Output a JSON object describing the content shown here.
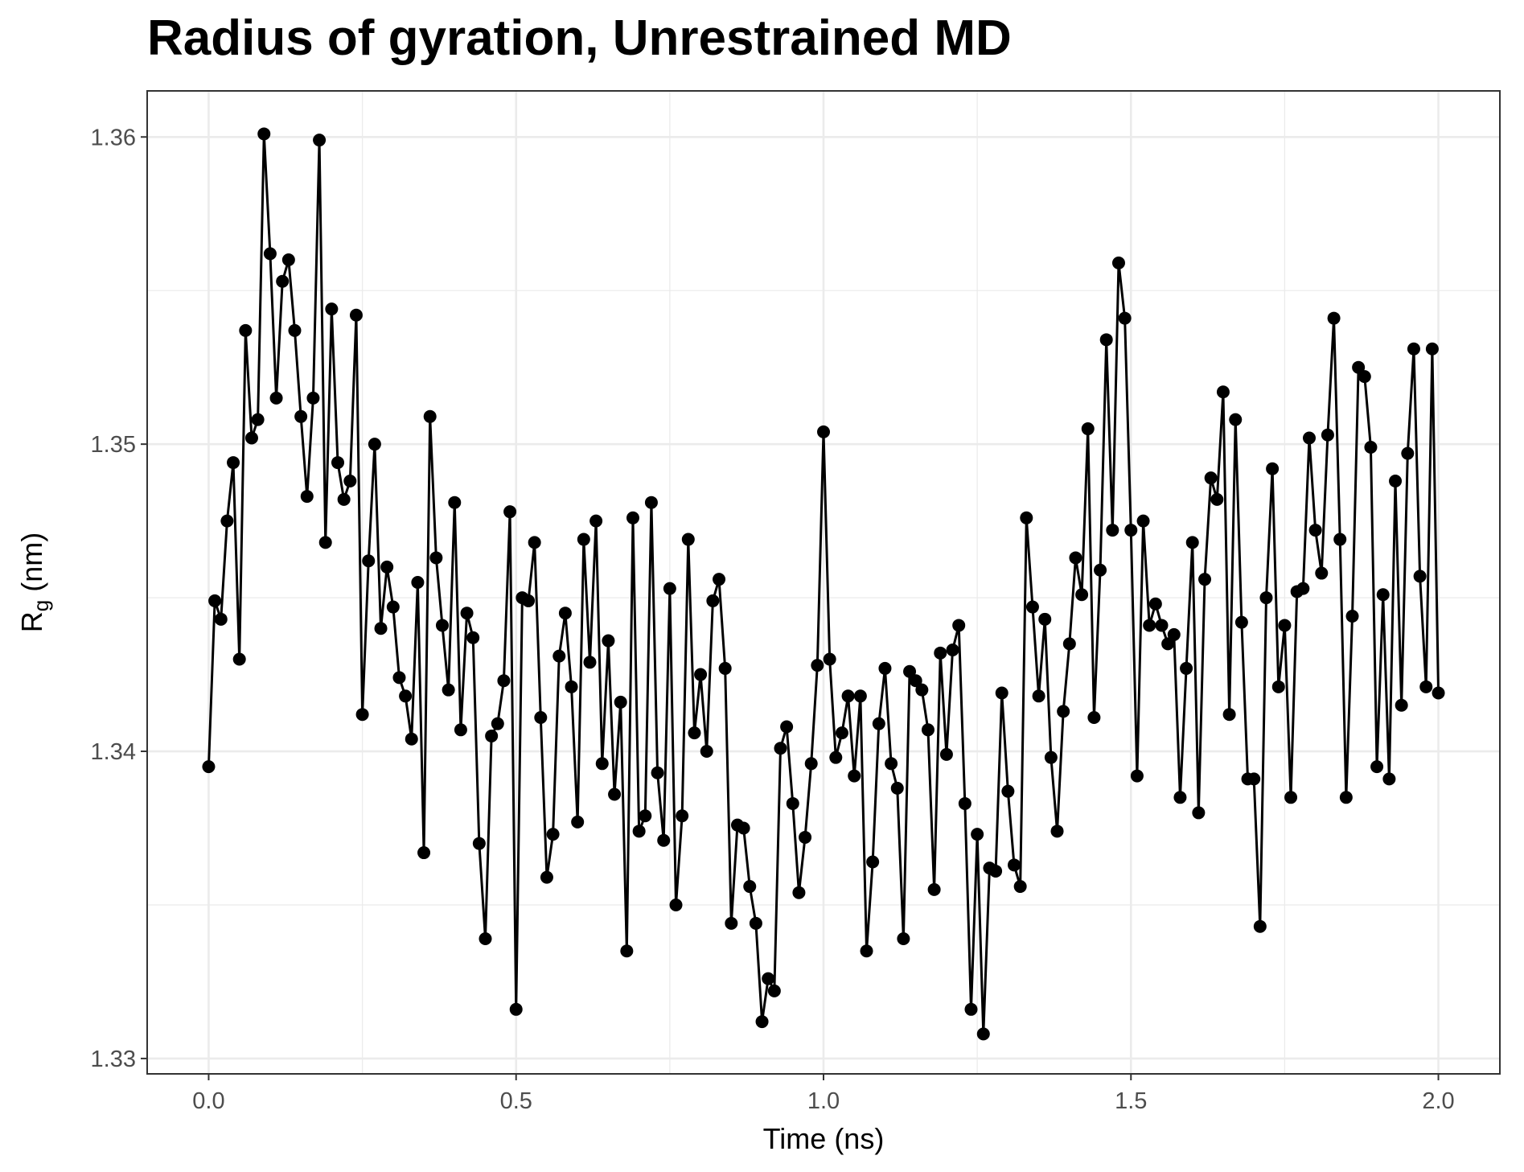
{
  "chart_data": {
    "type": "line",
    "title": "Radius of gyration, Unrestrained MD",
    "xlabel": "Time (ns)",
    "ylabel_main": "R",
    "ylabel_sub": "g",
    "ylabel_unit": " (nm)",
    "xlim": [
      -0.1,
      2.1
    ],
    "ylim": [
      1.3295,
      1.3615
    ],
    "x_major_ticks": [
      0.0,
      0.5,
      1.0,
      1.5,
      2.0
    ],
    "x_tick_labels": [
      "0.0",
      "0.5",
      "1.0",
      "1.5",
      "2.0"
    ],
    "x_minor_ticks": [
      0.25,
      0.75,
      1.25,
      1.75
    ],
    "y_major_ticks": [
      1.33,
      1.34,
      1.35,
      1.36
    ],
    "y_tick_labels": [
      "1.33",
      "1.34",
      "1.35",
      "1.36"
    ],
    "y_minor_ticks": [
      1.335,
      1.345,
      1.355
    ],
    "grid": true,
    "line_color": "#000000",
    "x_start": 0.0,
    "x_step": 0.01,
    "values": [
      1.3395,
      1.3449,
      1.3443,
      1.3475,
      1.3494,
      1.343,
      1.3537,
      1.3502,
      1.3508,
      1.3601,
      1.3562,
      1.3515,
      1.3553,
      1.356,
      1.3537,
      1.3509,
      1.3483,
      1.3515,
      1.3599,
      1.3468,
      1.3544,
      1.3494,
      1.3482,
      1.3488,
      1.3542,
      1.3412,
      1.3462,
      1.35,
      1.344,
      1.346,
      1.3447,
      1.3424,
      1.3418,
      1.3404,
      1.3455,
      1.3367,
      1.3509,
      1.3463,
      1.3441,
      1.342,
      1.3481,
      1.3407,
      1.3445,
      1.3437,
      1.337,
      1.3339,
      1.3405,
      1.3409,
      1.3423,
      1.3478,
      1.3316,
      1.345,
      1.3449,
      1.3468,
      1.3411,
      1.3359,
      1.3373,
      1.3431,
      1.3445,
      1.3421,
      1.3377,
      1.3469,
      1.3429,
      1.3475,
      1.3396,
      1.3436,
      1.3386,
      1.3416,
      1.3335,
      1.3476,
      1.3374,
      1.3379,
      1.3481,
      1.3393,
      1.3371,
      1.3453,
      1.335,
      1.3379,
      1.3469,
      1.3406,
      1.3425,
      1.34,
      1.3449,
      1.3456,
      1.3427,
      1.3344,
      1.3376,
      1.3375,
      1.3356,
      1.3344,
      1.3312,
      1.3326,
      1.3322,
      1.3401,
      1.3408,
      1.3383,
      1.3354,
      1.3372,
      1.3396,
      1.3428,
      1.3504,
      1.343,
      1.3398,
      1.3406,
      1.3418,
      1.3392,
      1.3418,
      1.3335,
      1.3364,
      1.3409,
      1.3427,
      1.3396,
      1.3388,
      1.3339,
      1.3426,
      1.3423,
      1.342,
      1.3407,
      1.3355,
      1.3432,
      1.3399,
      1.3433,
      1.3441,
      1.3383,
      1.3316,
      1.3373,
      1.3308,
      1.3362,
      1.3361,
      1.3419,
      1.3387,
      1.3363,
      1.3356,
      1.3476,
      1.3447,
      1.3418,
      1.3443,
      1.3398,
      1.3374,
      1.3413,
      1.3435,
      1.3463,
      1.3451,
      1.3505,
      1.3411,
      1.3459,
      1.3534,
      1.3472,
      1.3559,
      1.3541,
      1.3472,
      1.3392,
      1.3475,
      1.3441,
      1.3448,
      1.3441,
      1.3435,
      1.3438,
      1.3385,
      1.3427,
      1.3468,
      1.338,
      1.3456,
      1.3489,
      1.3482,
      1.3517,
      1.3412,
      1.3508,
      1.3442,
      1.3391,
      1.3391,
      1.3343,
      1.345,
      1.3492,
      1.3421,
      1.3441,
      1.3385,
      1.3452,
      1.3453,
      1.3502,
      1.3472,
      1.3458,
      1.3503,
      1.3541,
      1.3469,
      1.3385,
      1.3444,
      1.3525,
      1.3522,
      1.3499,
      1.3395,
      1.3451,
      1.3391,
      1.3488,
      1.3415,
      1.3497,
      1.3531,
      1.3457,
      1.3421,
      1.3531,
      1.3419
    ]
  }
}
